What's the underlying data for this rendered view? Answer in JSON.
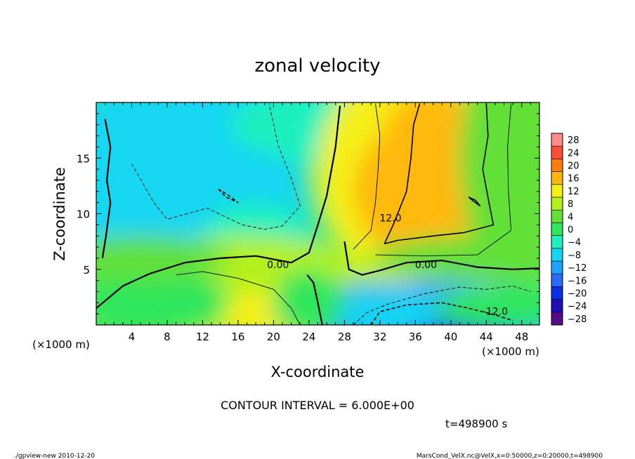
{
  "chart_data": {
    "type": "heatmap",
    "title": "zonal velocity",
    "xlabel": "X-coordinate",
    "ylabel": "Z-coordinate",
    "x_unit_left": "(×1000 m)",
    "x_unit_right": "(×1000 m)",
    "xlim": [
      0,
      50
    ],
    "ylim": [
      0,
      20
    ],
    "x_ticks": [
      "4",
      "8",
      "12",
      "16",
      "20",
      "24",
      "28",
      "32",
      "36",
      "40",
      "44",
      "48"
    ],
    "y_ticks": [
      "5",
      "10",
      "15"
    ],
    "colorbar_ticks": [
      "28",
      "24",
      "20",
      "16",
      "12",
      "8",
      "4",
      "0",
      "-4",
      "-8",
      "-12",
      "-16",
      "-20",
      "-24",
      "-28"
    ],
    "colorbar_levels": [
      -30,
      -26,
      -22,
      -18,
      -14,
      -10,
      -6,
      -2,
      2,
      6,
      10,
      14,
      18,
      22,
      26,
      30
    ],
    "colorbar_colors": [
      "#5a0a8c",
      "#1c0fb4",
      "#0a2fe6",
      "#2a6cf5",
      "#1ca2ff",
      "#14d6f2",
      "#1ef0be",
      "#2ee65c",
      "#62e038",
      "#b4f01e",
      "#f4f014",
      "#ffb810",
      "#ff7e0c",
      "#ff4e3c",
      "#ff8a8a"
    ],
    "contour_interval_text": "CONTOUR INTERVAL = 6.000E+00",
    "time_text": "t=498900 s",
    "contour_labels": [
      {
        "text": "0.00",
        "x": 20.5,
        "y": 5.1
      },
      {
        "text": "0.00",
        "x": 37.2,
        "y": 5.1
      },
      {
        "text": "12.0",
        "x": 33.2,
        "y": 9.3
      },
      {
        "text": "-12.0",
        "x": 45.0,
        "y": 0.9
      }
    ],
    "contours": [
      {
        "level": 0,
        "points": [
          [
            0,
            1.5
          ],
          [
            3,
            3.5
          ],
          [
            6,
            4.6
          ],
          [
            10,
            5.6
          ],
          [
            14,
            6
          ],
          [
            18,
            6.2
          ],
          [
            22,
            5.6
          ],
          [
            24,
            6.5
          ],
          [
            25,
            9
          ],
          [
            26,
            11.6
          ],
          [
            27,
            16
          ],
          [
            27.5,
            19.7
          ]
        ]
      },
      {
        "level": 0,
        "points": [
          [
            28,
            7.5
          ],
          [
            28.5,
            5
          ],
          [
            30,
            4.5
          ],
          [
            32,
            4.9
          ],
          [
            35,
            5.6
          ],
          [
            39,
            5.8
          ],
          [
            43,
            5.2
          ],
          [
            47,
            5.0
          ],
          [
            50,
            5.1
          ]
        ]
      },
      {
        "level": 0,
        "points": [
          [
            1,
            18.5
          ],
          [
            1.6,
            16
          ],
          [
            1.2,
            13
          ],
          [
            1.6,
            11
          ],
          [
            1.1,
            8
          ],
          [
            0.7,
            6
          ]
        ]
      },
      {
        "level": 0,
        "points": [
          [
            25.5,
            0
          ],
          [
            25,
            2
          ],
          [
            24.5,
            3.8
          ],
          [
            23.8,
            4.5
          ]
        ]
      },
      {
        "level": 12,
        "points": [
          [
            32.5,
            7.3
          ],
          [
            33.5,
            9
          ],
          [
            35,
            12
          ],
          [
            35.5,
            15
          ],
          [
            35.8,
            18
          ],
          [
            36.5,
            19.9
          ]
        ]
      },
      {
        "level": 12,
        "points": [
          [
            44,
            19.9
          ],
          [
            44.2,
            17
          ],
          [
            43.6,
            14
          ],
          [
            44.3,
            11
          ],
          [
            44.8,
            9
          ],
          [
            41.5,
            8.3
          ],
          [
            38,
            8
          ],
          [
            34,
            7.6
          ],
          [
            32.5,
            7.3
          ]
        ]
      },
      {
        "level": 12,
        "points": [
          [
            42,
            11.5
          ],
          [
            42.8,
            11.2
          ],
          [
            43.3,
            10.7
          ],
          [
            42.6,
            11.1
          ],
          [
            42,
            11.5
          ]
        ]
      },
      {
        "level": -6,
        "points": [
          [
            4,
            14.5
          ],
          [
            6.5,
            11
          ],
          [
            8,
            9.5
          ],
          [
            12.5,
            10.5
          ],
          [
            16.5,
            9
          ],
          [
            19,
            8.6
          ],
          [
            21,
            8.9
          ],
          [
            23,
            10.7
          ],
          [
            22,
            13.2
          ],
          [
            20.5,
            16.2
          ],
          [
            19.5,
            19.9
          ]
        ]
      },
      {
        "level": -6,
        "points": [
          [
            29,
            0
          ],
          [
            30.5,
            1.1
          ],
          [
            33,
            1.9
          ],
          [
            37,
            2.8
          ],
          [
            41,
            3.4
          ],
          [
            44,
            3.2
          ],
          [
            47,
            3.5
          ],
          [
            49,
            3
          ]
        ]
      },
      {
        "level": -12,
        "points": [
          [
            13.8,
            12.2
          ],
          [
            14.6,
            11.5
          ],
          [
            16,
            11
          ],
          [
            15,
            11.6
          ],
          [
            13.8,
            12.2
          ]
        ]
      },
      {
        "level": -12,
        "points": [
          [
            31,
            0
          ],
          [
            32,
            1.2
          ],
          [
            35,
            1.8
          ],
          [
            39,
            2
          ],
          [
            42,
            1.5
          ],
          [
            45,
            0.9
          ],
          [
            47,
            0.4
          ]
        ]
      },
      {
        "level": 6,
        "points": [
          [
            9,
            4.5
          ],
          [
            12,
            4.8
          ],
          [
            16,
            4.2
          ],
          [
            20,
            3.2
          ],
          [
            22,
            1.5
          ],
          [
            23,
            0
          ]
        ]
      },
      {
        "level": 6,
        "points": [
          [
            29,
            6.8
          ],
          [
            31,
            8.5
          ],
          [
            31.5,
            11
          ],
          [
            31.8,
            14
          ],
          [
            32,
            17
          ],
          [
            31.5,
            19.9
          ]
        ]
      },
      {
        "level": 6,
        "points": [
          [
            46.8,
            19.9
          ],
          [
            46.4,
            16
          ],
          [
            46.5,
            12
          ],
          [
            46.8,
            8.5
          ],
          [
            43,
            6.3
          ],
          [
            37,
            6.2
          ],
          [
            31.5,
            6.3
          ]
        ]
      }
    ]
  },
  "footer": {
    "left": "./gpview-new  2010-12-20",
    "right": "MarsCond_VelX.nc@VelX,x=0:50000,z=0:20000,t=498900"
  }
}
